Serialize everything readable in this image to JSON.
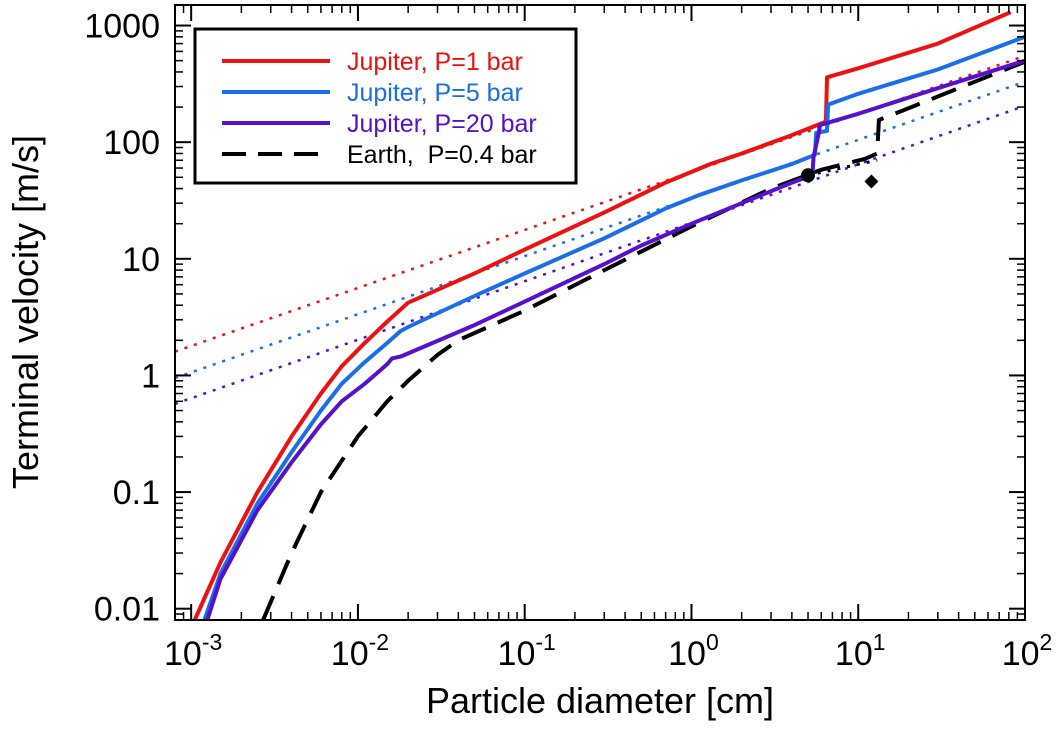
{
  "chart_data": {
    "type": "line",
    "title": "",
    "xlabel": "Particle diameter [cm]",
    "ylabel": "Terminal velocity [m/s]",
    "x_scale": "log",
    "y_scale": "log",
    "xlim": [
      0.0008,
      100
    ],
    "ylim": [
      0.008,
      1500
    ],
    "x_ticks": [
      {
        "value": 0.001,
        "base": "10",
        "exp": "-3"
      },
      {
        "value": 0.01,
        "base": "10",
        "exp": "-2"
      },
      {
        "value": 0.1,
        "base": "10",
        "exp": "-1"
      },
      {
        "value": 1,
        "base": "10",
        "exp": "0"
      },
      {
        "value": 10,
        "base": "10",
        "exp": "1"
      },
      {
        "value": 100,
        "base": "10",
        "exp": "2"
      }
    ],
    "y_ticks": [
      {
        "value": 0.01,
        "label": "0.01"
      },
      {
        "value": 0.1,
        "label": "0.1"
      },
      {
        "value": 1,
        "label": "1"
      },
      {
        "value": 10,
        "label": "10"
      },
      {
        "value": 100,
        "label": "100"
      },
      {
        "value": 1000,
        "label": "1000"
      }
    ],
    "grid": false,
    "legend_position": "top-left",
    "series": [
      {
        "name": "Jupiter, P=1 bar",
        "color": "#ee1111",
        "style": "solid",
        "x": [
          0.00105,
          0.0015,
          0.0025,
          0.004,
          0.006,
          0.008,
          0.011,
          0.015,
          0.02,
          0.05,
          0.1,
          0.3,
          0.7,
          1.3,
          2.0,
          4.0,
          6.4,
          6.5,
          10,
          30,
          82
        ],
        "y": [
          0.008,
          0.025,
          0.1,
          0.3,
          0.7,
          1.2,
          1.9,
          2.9,
          4.2,
          7.5,
          12,
          25,
          45,
          65,
          80,
          115,
          150,
          360,
          430,
          700,
          1300
        ]
      },
      {
        "name": "Jupiter, P=5 bar",
        "color": "#1a6ee8",
        "style": "solid",
        "x": [
          0.0012,
          0.0015,
          0.0025,
          0.004,
          0.006,
          0.008,
          0.011,
          0.015,
          0.018,
          0.02,
          0.05,
          0.1,
          0.3,
          0.7,
          1.1,
          2.0,
          4.0,
          5.5,
          5.6,
          6.5,
          6.6,
          10,
          30,
          100
        ],
        "y": [
          0.008,
          0.02,
          0.08,
          0.22,
          0.5,
          0.85,
          1.3,
          1.9,
          2.4,
          2.6,
          4.8,
          7.5,
          15,
          27,
          35,
          47,
          65,
          78,
          120,
          125,
          210,
          260,
          420,
          800
        ]
      },
      {
        "name": "Jupiter, P=20 bar",
        "color": "#5511cc",
        "style": "solid",
        "x": [
          0.00125,
          0.0015,
          0.0025,
          0.004,
          0.006,
          0.008,
          0.011,
          0.015,
          0.016,
          0.018,
          0.05,
          0.1,
          0.3,
          0.5,
          1.0,
          2.0,
          4.0,
          5.3,
          5.4,
          5.8,
          5.9,
          10,
          30,
          100
        ],
        "y": [
          0.008,
          0.018,
          0.07,
          0.18,
          0.38,
          0.6,
          0.85,
          1.25,
          1.4,
          1.45,
          2.7,
          4.3,
          9,
          13,
          20,
          30,
          45,
          52,
          75,
          120,
          140,
          175,
          290,
          500
        ]
      },
      {
        "name": "Earth,  P=0.4 bar",
        "color": "#000000",
        "style": "dashed",
        "x": [
          0.0027,
          0.004,
          0.006,
          0.01,
          0.015,
          0.02,
          0.03,
          0.04,
          0.1,
          0.3,
          1.0,
          3.0,
          6.0,
          11,
          13,
          13.3,
          20,
          40,
          100
        ],
        "y": [
          0.008,
          0.03,
          0.1,
          0.3,
          0.6,
          0.9,
          1.5,
          2.0,
          3.6,
          8,
          19,
          40,
          58,
          72,
          80,
          155,
          195,
          290,
          490
        ]
      }
    ],
    "extrapolations": [
      {
        "color": "#ee1111",
        "style": "dotted",
        "x": [
          0.0008,
          100
        ],
        "y": [
          1.6,
          550
        ]
      },
      {
        "color": "#1a6ee8",
        "style": "dotted",
        "x": [
          0.0008,
          100
        ],
        "y": [
          0.95,
          330
        ]
      },
      {
        "color": "#5511cc",
        "style": "dotted",
        "x": [
          0.0008,
          100
        ],
        "y": [
          0.57,
          205
        ]
      },
      {
        "color": "#000000",
        "style": "dotted",
        "x": [
          5,
          13
        ],
        "y": [
          52,
          70
        ]
      }
    ],
    "markers": [
      {
        "shape": "circle",
        "x": 5.0,
        "y": 52
      },
      {
        "shape": "diamond",
        "x": 12,
        "y": 46
      }
    ]
  }
}
